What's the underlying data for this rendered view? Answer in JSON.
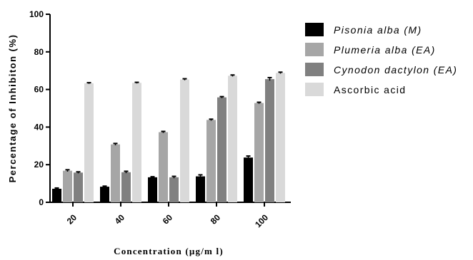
{
  "chart_data": {
    "type": "bar",
    "title": "",
    "xlabel": "Concentration (µg/m l)",
    "ylabel": "Percentage of Inhibiton (%)",
    "categories": [
      "20",
      "40",
      "60",
      "80",
      "100"
    ],
    "ylim": [
      0,
      100
    ],
    "yticks": [
      "0",
      "20",
      "40",
      "60",
      "80",
      "100"
    ],
    "grid": false,
    "legend_position": "right",
    "series": [
      {
        "name": "Pisonia alba (M)",
        "italic": true,
        "color": "#000000",
        "values": [
          7.2,
          8.3,
          13.3,
          13.8,
          23.8
        ],
        "errors": [
          0.4,
          0.3,
          0.3,
          0.8,
          0.8
        ]
      },
      {
        "name": "Plumeria alba (EA)",
        "italic": true,
        "color": "#a6a6a6",
        "values": [
          16.8,
          30.8,
          37.3,
          43.8,
          52.8
        ],
        "errors": [
          0.5,
          0.5,
          0.4,
          0.4,
          0.4
        ]
      },
      {
        "name": "Cynodon dactylon (EA)",
        "italic": true,
        "color": "#808080",
        "values": [
          15.8,
          16.0,
          13.3,
          55.8,
          65.5
        ],
        "errors": [
          0.4,
          0.5,
          0.5,
          0.4,
          0.8
        ]
      },
      {
        "name": "Ascorbic acid",
        "italic": false,
        "color": "#d9d9d9",
        "values": [
          63.3,
          63.5,
          65.3,
          67.3,
          68.8
        ],
        "errors": [
          0.3,
          0.3,
          0.4,
          0.4,
          0.4
        ]
      }
    ]
  }
}
